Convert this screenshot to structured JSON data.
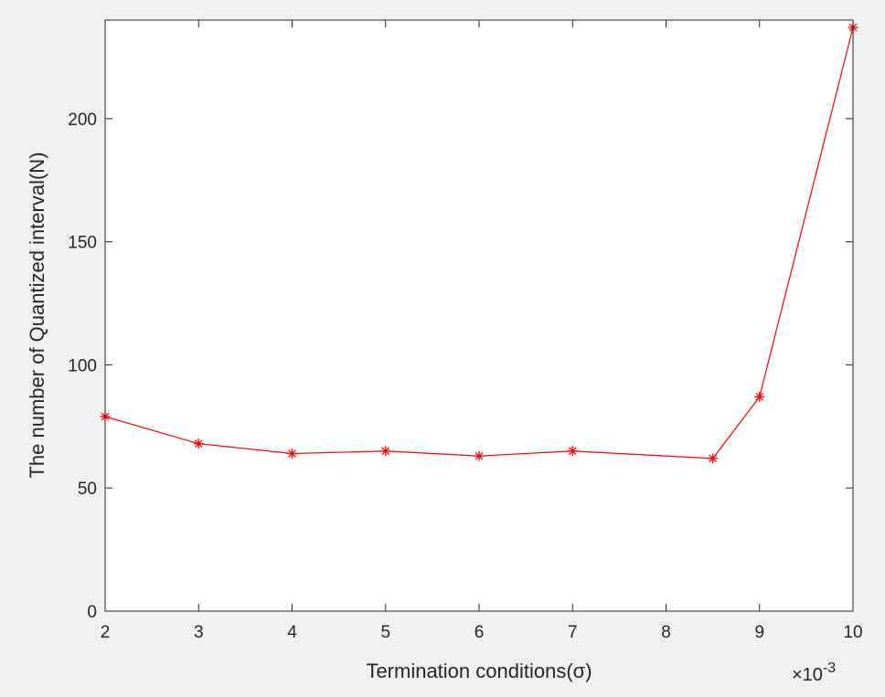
{
  "chart_data": {
    "type": "line",
    "xlabel": "Termination conditions(σ)",
    "ylabel": "The number of Quantized interval(N)",
    "x_exponent_label": "×10",
    "x_exponent_power": "-3",
    "xlim": [
      2,
      10
    ],
    "ylim": [
      0,
      240
    ],
    "x_ticks": [
      2,
      3,
      4,
      5,
      6,
      7,
      8,
      9,
      10
    ],
    "y_ticks": [
      0,
      50,
      100,
      150,
      200
    ],
    "grid": false,
    "series": [
      {
        "color": "#ff0000",
        "marker": "asterisk",
        "x": [
          2,
          3,
          4,
          5,
          6,
          7,
          8.5,
          9,
          10
        ],
        "y": [
          79,
          68,
          64,
          65,
          63,
          65,
          62,
          87,
          237
        ]
      }
    ]
  }
}
